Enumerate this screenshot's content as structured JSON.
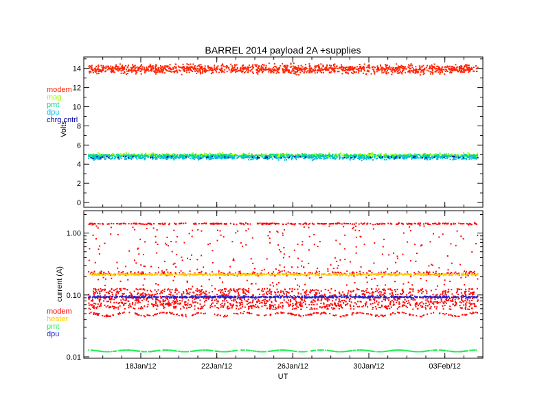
{
  "chart_data": [
    {
      "type": "scatter",
      "title": "BARREL 2014 payload 2A +supplies",
      "xlabel": "",
      "ylabel": "Volts",
      "yscale": "linear",
      "ylim": [
        -0.5,
        15.2
      ],
      "yticks": [
        0,
        2,
        4,
        6,
        8,
        10,
        12,
        14
      ],
      "ytick_labels": [
        "0",
        "2",
        "4",
        "6",
        "8",
        "10",
        "12",
        "14"
      ],
      "legend_position": "left",
      "series": [
        {
          "name": "modem",
          "color": "#ff2200",
          "approx_value": 14.0,
          "spread": [
            13.2,
            14.6
          ]
        },
        {
          "name": "mag",
          "color": "#99ff00",
          "approx_value": 5.0,
          "spread": [
            4.7,
            5.3
          ]
        },
        {
          "name": "pmt",
          "color": "#00dd88",
          "approx_value": 4.95,
          "spread": [
            4.7,
            5.2
          ]
        },
        {
          "name": "dpu",
          "color": "#00bbdd",
          "approx_value": 4.75,
          "spread": [
            4.4,
            5.0
          ]
        },
        {
          "name": "chrg cntrl",
          "color": "#0000aa",
          "approx_value": 4.8,
          "spread": [
            4.6,
            5.0
          ]
        }
      ]
    },
    {
      "type": "scatter",
      "title": "",
      "xlabel": "UT",
      "ylabel": "current (A)",
      "yscale": "log",
      "ylim": [
        0.0095,
        2.3
      ],
      "yticks": [
        0.01,
        0.1,
        1.0
      ],
      "ytick_labels": [
        "0.01",
        "0.10",
        "1.00"
      ],
      "legend_position": "left",
      "series": [
        {
          "name": "modem",
          "color": "#ff0000",
          "approx_value": 0.1,
          "spread": [
            0.045,
            1.5
          ]
        },
        {
          "name": "heater",
          "color": "#ffcc00",
          "approx_value": 0.22,
          "spread": [
            0.21,
            0.235
          ]
        },
        {
          "name": "pmt",
          "color": "#22ee55",
          "approx_value": 0.0128,
          "spread": [
            0.0123,
            0.0133
          ]
        },
        {
          "name": "dpu",
          "color": "#2222cc",
          "approx_value": 0.095,
          "spread": [
            0.09,
            0.1
          ]
        }
      ]
    }
  ],
  "x_axis": {
    "range": [
      "2012-01-15",
      "2012-02-05"
    ],
    "ticks": [
      "2012-01-18",
      "2012-01-22",
      "2012-01-26",
      "2012-01-30",
      "2012-02-03"
    ],
    "tick_labels": [
      "18Jan/12",
      "22Jan/12",
      "26Jan/12",
      "30Jan/12",
      "03Feb/12"
    ],
    "label": "UT"
  }
}
